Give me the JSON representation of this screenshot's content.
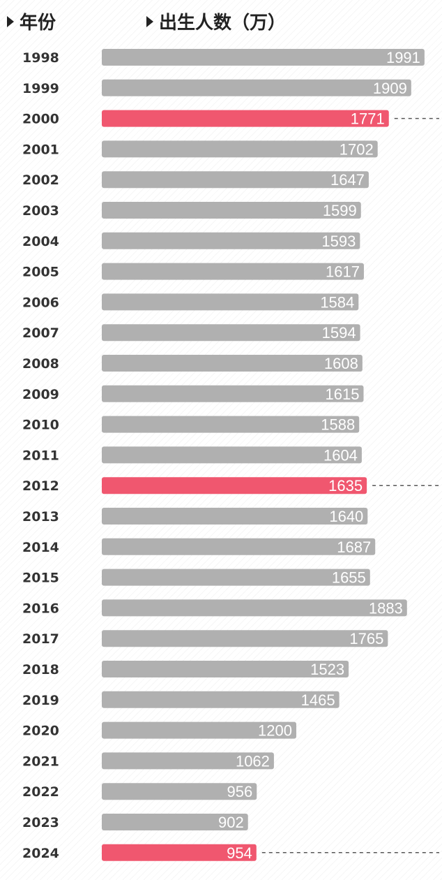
{
  "header": {
    "year_col": "年份",
    "births_col": "出生人数（万）"
  },
  "colors": {
    "bar": "#b0b0b0",
    "highlight": "#f0576f",
    "year_text": "#333333",
    "value_text": "#ffffff"
  },
  "chart_data": {
    "type": "bar",
    "orientation": "horizontal",
    "xlabel": "",
    "ylabel": "",
    "unit": "万",
    "categories": [
      "1998",
      "1999",
      "2000",
      "2001",
      "2002",
      "2003",
      "2004",
      "2005",
      "2006",
      "2007",
      "2008",
      "2009",
      "2010",
      "2011",
      "2012",
      "2013",
      "2014",
      "2015",
      "2016",
      "2017",
      "2018",
      "2019",
      "2020",
      "2021",
      "2022",
      "2023",
      "2024"
    ],
    "values": [
      1991,
      1909,
      1771,
      1702,
      1647,
      1599,
      1593,
      1617,
      1584,
      1594,
      1608,
      1615,
      1588,
      1604,
      1635,
      1640,
      1687,
      1655,
      1883,
      1765,
      1523,
      1465,
      1200,
      1062,
      956,
      902,
      954
    ],
    "highlighted": [
      "2000",
      "2012",
      "2024"
    ],
    "xlim": [
      0,
      1991
    ],
    "grid": false,
    "legend": "none"
  }
}
